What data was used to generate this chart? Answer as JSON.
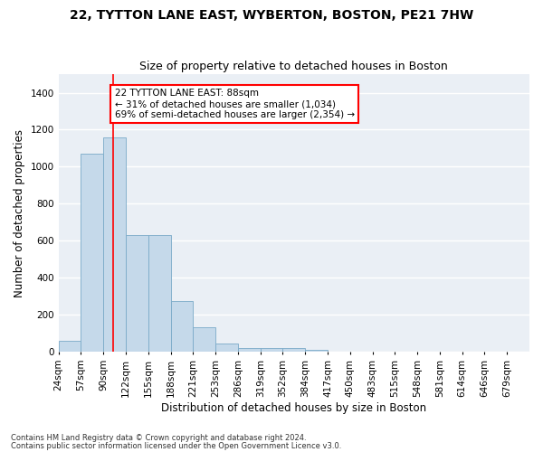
{
  "title": "22, TYTTON LANE EAST, WYBERTON, BOSTON, PE21 7HW",
  "subtitle": "Size of property relative to detached houses in Boston",
  "xlabel": "Distribution of detached houses by size in Boston",
  "ylabel": "Number of detached properties",
  "footer_line1": "Contains HM Land Registry data © Crown copyright and database right 2024.",
  "footer_line2": "Contains public sector information licensed under the Open Government Licence v3.0.",
  "annotation_line1": "22 TYTTON LANE EAST: 88sqm",
  "annotation_line2": "← 31% of detached houses are smaller (1,034)",
  "annotation_line3": "69% of semi-detached houses are larger (2,354) →",
  "bar_color": "#c5d9ea",
  "bar_edge_color": "#7aaac8",
  "red_line_x": 88,
  "categories": [
    "24sqm",
    "57sqm",
    "90sqm",
    "122sqm",
    "155sqm",
    "188sqm",
    "221sqm",
    "253sqm",
    "286sqm",
    "319sqm",
    "352sqm",
    "384sqm",
    "417sqm",
    "450sqm",
    "483sqm",
    "515sqm",
    "548sqm",
    "581sqm",
    "614sqm",
    "646sqm",
    "679sqm"
  ],
  "bin_edges": [
    7.5,
    40.5,
    73.5,
    106.5,
    139.5,
    172.5,
    205.5,
    238.5,
    271.5,
    304.5,
    337.5,
    370.5,
    403.5,
    436.5,
    469.5,
    502.5,
    535.5,
    568.5,
    601.5,
    634.5,
    667.5,
    700.5
  ],
  "values": [
    60,
    1070,
    1160,
    630,
    630,
    275,
    135,
    45,
    20,
    18,
    20,
    12,
    0,
    0,
    0,
    0,
    0,
    0,
    0,
    0,
    0
  ],
  "ylim": [
    0,
    1500
  ],
  "yticks": [
    0,
    200,
    400,
    600,
    800,
    1000,
    1200,
    1400
  ],
  "background_color": "#eaeff5",
  "grid_color": "#ffffff",
  "title_fontsize": 10,
  "subtitle_fontsize": 9,
  "axis_label_fontsize": 8.5,
  "tick_fontsize": 7.5,
  "annotation_fontsize": 7.5,
  "figsize": [
    6.0,
    5.0
  ],
  "dpi": 100
}
